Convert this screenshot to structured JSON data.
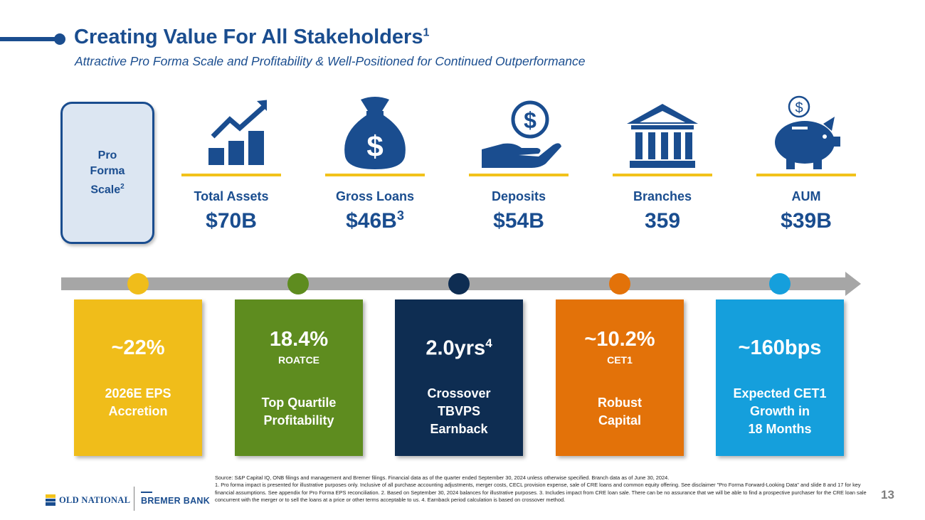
{
  "header": {
    "title": "Creating Value For All Stakeholders",
    "title_sup": "1",
    "subtitle": "Attractive Pro Forma Scale and Profitability & Well-Positioned for Continued Outperformance"
  },
  "scale_box": {
    "line1": "Pro",
    "line2": "Forma",
    "line3": "Scale",
    "sup": "2"
  },
  "metrics": [
    {
      "icon": "growth-chart-icon",
      "label": "Total Assets",
      "value": "$70B",
      "sup": ""
    },
    {
      "icon": "money-bag-icon",
      "label": "Gross Loans",
      "value": "$46B",
      "sup": "3"
    },
    {
      "icon": "hand-coin-icon",
      "label": "Deposits",
      "value": "$54B",
      "sup": ""
    },
    {
      "icon": "bank-building-icon",
      "label": "Branches",
      "value": "359",
      "sup": ""
    },
    {
      "icon": "piggy-bank-icon",
      "label": "AUM",
      "value": "$39B",
      "sup": ""
    }
  ],
  "cards": [
    {
      "color": "#f0bd1a",
      "big": "~22%",
      "sup": "",
      "small": "",
      "desc1": "2026E EPS",
      "desc2": "Accretion",
      "desc3": ""
    },
    {
      "color": "#5e8c1f",
      "big": "18.4%",
      "sup": "",
      "small": "ROATCE",
      "desc1": "Top Quartile",
      "desc2": "Profitability",
      "desc3": ""
    },
    {
      "color": "#0e2d52",
      "big": "2.0yrs",
      "sup": "4",
      "small": "",
      "desc1": "Crossover",
      "desc2": "TBVPS",
      "desc3": "Earnback"
    },
    {
      "color": "#e37209",
      "big": "~10.2%",
      "sup": "",
      "small": "CET1",
      "desc1": "Robust",
      "desc2": "Capital",
      "desc3": ""
    },
    {
      "color": "#159fdc",
      "big": "~160bps",
      "sup": "",
      "small": "",
      "desc1": "Expected CET1",
      "desc2": "Growth in",
      "desc3": "18 Months"
    }
  ],
  "colors": {
    "brand_blue": "#1a4d8f",
    "accent_yellow": "#f2c21b",
    "timeline_gray": "#a6a6a6"
  },
  "footnotes": {
    "line1": "Source: S&P Capital IQ, ONB filings and management and Bremer filings. Financial data as of the quarter ended September 30, 2024 unless otherwise specified. Branch data as of June 30, 2024.",
    "line2": "1. Pro forma impact is presented for illustrative purposes only. Inclusive of all purchase accounting adjustments, merger costs, CECL provision expense, sale of CRE loans and common equity offering. See disclaimer \"Pro Forma Forward-Looking Data\" and slide 8 and 17 for key financial assumptions. See appendix for Pro Forma EPS reconciliation. 2. Based on September 30, 2024 balances for illustrative purposes. 3. Includes impact from CRE loan sale. There can be no assurance that we will be able to find a prospective purchaser for the CRE loan sale concurrent with the merger or to sell the loans at a price or other terms acceptable to us. 4. Earnback period calculation is based on crossover method."
  },
  "footer": {
    "page_number": "13",
    "logo_old_national": "OLD NATIONAL",
    "logo_bremer": "BREMER BANK"
  }
}
